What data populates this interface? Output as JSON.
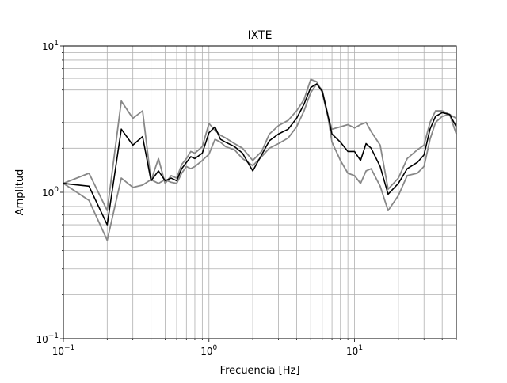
{
  "chart_data": {
    "type": "line",
    "title": "IXTE",
    "xlabel": "Frecuencia [Hz]",
    "ylabel": "Amplitud",
    "xscale": "log",
    "yscale": "log",
    "xlim": [
      0.1,
      50
    ],
    "ylim": [
      0.1,
      10
    ],
    "grid": "both, major and minor",
    "legend": "none",
    "x_major_ticks": [
      {
        "value": 0.1,
        "base": "10",
        "exp": "−1"
      },
      {
        "value": 1,
        "base": "10",
        "exp": "0"
      },
      {
        "value": 10,
        "base": "10",
        "exp": "1"
      }
    ],
    "y_major_ticks": [
      {
        "value": 0.1,
        "base": "10",
        "exp": "−1"
      },
      {
        "value": 1,
        "base": "10",
        "exp": "0"
      },
      {
        "value": 10,
        "base": "10",
        "exp": "1"
      }
    ],
    "series": [
      {
        "color": "#888888",
        "x": [
          0.1,
          0.15,
          0.2,
          0.25,
          0.3,
          0.35,
          0.4,
          0.45,
          0.5,
          0.55,
          0.6,
          0.65,
          0.7,
          0.75,
          0.8,
          0.9,
          1.0,
          1.1,
          1.2,
          1.3,
          1.5,
          1.7,
          2.0,
          2.3,
          2.6,
          3.0,
          3.5,
          4.0,
          4.5,
          5.0,
          5.5,
          6.0,
          6.5,
          7.0,
          8.0,
          9.0,
          10,
          11,
          12,
          13,
          15,
          17,
          20,
          23,
          27,
          30,
          33,
          36,
          40,
          45,
          50
        ],
        "y": [
          1.15,
          0.88,
          0.47,
          1.25,
          1.08,
          1.12,
          1.22,
          1.15,
          1.22,
          1.17,
          1.15,
          1.35,
          1.5,
          1.45,
          1.5,
          1.65,
          1.82,
          2.3,
          2.2,
          2.05,
          1.95,
          1.7,
          1.52,
          1.75,
          2.0,
          2.15,
          2.35,
          2.8,
          3.6,
          4.8,
          5.5,
          5.0,
          3.5,
          2.2,
          1.65,
          1.35,
          1.3,
          1.15,
          1.4,
          1.45,
          1.1,
          0.75,
          0.95,
          1.3,
          1.35,
          1.5,
          2.3,
          3.0,
          3.3,
          3.4,
          2.5
        ]
      },
      {
        "color": "#888888",
        "x": [
          0.1,
          0.15,
          0.2,
          0.25,
          0.3,
          0.35,
          0.4,
          0.45,
          0.5,
          0.55,
          0.6,
          0.65,
          0.7,
          0.75,
          0.8,
          0.9,
          1.0,
          1.1,
          1.2,
          1.3,
          1.5,
          1.7,
          2.0,
          2.3,
          2.6,
          3.0,
          3.5,
          4.0,
          4.5,
          5.0,
          5.5,
          6.0,
          6.5,
          7.0,
          8.0,
          9.0,
          10,
          11,
          12,
          13,
          15,
          17,
          20,
          23,
          27,
          30,
          33,
          36,
          40,
          45,
          50
        ],
        "y": [
          1.15,
          1.35,
          0.75,
          4.2,
          3.2,
          3.6,
          1.2,
          1.7,
          1.15,
          1.3,
          1.25,
          1.55,
          1.7,
          1.9,
          1.85,
          2.05,
          2.95,
          2.65,
          2.45,
          2.35,
          2.15,
          2.0,
          1.65,
          1.9,
          2.5,
          2.85,
          3.1,
          3.6,
          4.3,
          5.9,
          5.7,
          4.8,
          3.4,
          2.7,
          2.8,
          2.9,
          2.75,
          2.9,
          3.0,
          2.6,
          2.1,
          1.05,
          1.25,
          1.7,
          1.95,
          2.1,
          3.0,
          3.6,
          3.6,
          3.4,
          3.2
        ]
      },
      {
        "color": "#000000",
        "x": [
          0.1,
          0.15,
          0.2,
          0.25,
          0.3,
          0.35,
          0.4,
          0.45,
          0.5,
          0.55,
          0.6,
          0.65,
          0.7,
          0.75,
          0.8,
          0.9,
          1.0,
          1.1,
          1.2,
          1.3,
          1.5,
          1.7,
          2.0,
          2.3,
          2.6,
          3.0,
          3.5,
          4.0,
          4.5,
          5.0,
          5.5,
          6.0,
          6.5,
          7.0,
          8.0,
          9.0,
          10,
          11,
          12,
          13,
          15,
          17,
          20,
          23,
          27,
          30,
          33,
          36,
          40,
          45,
          50
        ],
        "y": [
          1.15,
          1.1,
          0.6,
          2.7,
          2.1,
          2.4,
          1.2,
          1.4,
          1.2,
          1.25,
          1.2,
          1.45,
          1.6,
          1.75,
          1.7,
          1.85,
          2.55,
          2.8,
          2.3,
          2.2,
          2.05,
          1.85,
          1.4,
          1.8,
          2.25,
          2.5,
          2.7,
          3.2,
          4.0,
          5.2,
          5.5,
          4.9,
          3.5,
          2.5,
          2.2,
          1.9,
          1.9,
          1.65,
          2.15,
          2.0,
          1.5,
          0.97,
          1.15,
          1.45,
          1.6,
          1.8,
          2.7,
          3.3,
          3.5,
          3.4,
          2.8
        ]
      }
    ]
  }
}
